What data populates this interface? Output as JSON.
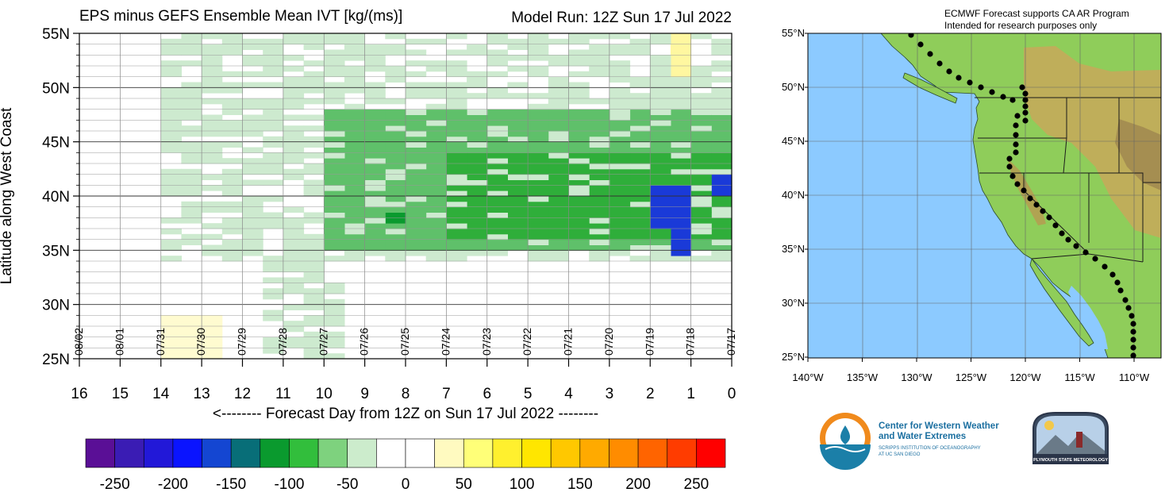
{
  "header": {
    "title": "EPS minus GEFS Ensemble Mean IVT [kg/(ms)]",
    "model_run": "Model Run: 12Z Sun 17 Jul 2022"
  },
  "chart_data": {
    "type": "heatmap",
    "title": "EPS minus GEFS Ensemble Mean IVT [kg/(ms)]",
    "xlabel": "<-------- Forecast Day from 12Z on Sun 17 Jul 2022 --------",
    "ylabel": "Latitude along West Coast",
    "x_range": [
      16,
      0
    ],
    "y_range": [
      25,
      55
    ],
    "x_ticks": [
      "16",
      "15",
      "14",
      "13",
      "12",
      "11",
      "10",
      "9",
      "8",
      "7",
      "6",
      "5",
      "4",
      "3",
      "2",
      "1",
      "0"
    ],
    "y_ticks": [
      "55N",
      "50N",
      "45N",
      "40N",
      "35N",
      "30N",
      "25N"
    ],
    "date_labels": [
      "08/02",
      "08/01",
      "07/31",
      "07/30",
      "07/29",
      "07/28",
      "07/27",
      "07/26",
      "07/25",
      "07/24",
      "07/23",
      "07/22",
      "07/21",
      "07/20",
      "07/19",
      "07/18",
      "07/17"
    ],
    "colorbar": {
      "labels": [
        "-250",
        "-200",
        "-150",
        "-100",
        "-50",
        "0",
        "50",
        "100",
        "150",
        "200",
        "250"
      ],
      "colors": [
        "#5a0f96",
        "#3a1cb4",
        "#2218d8",
        "#0a14ff",
        "#1446d2",
        "#086e78",
        "#0a9a2e",
        "#32be3c",
        "#7ed27e",
        "#cceccc",
        "#ffffff",
        "#ffffff",
        "#fffac0",
        "#ffff78",
        "#fff02e",
        "#ffe600",
        "#ffc800",
        "#ffaa00",
        "#ff8c00",
        "#ff6400",
        "#ff3c00",
        "#ff0000"
      ]
    },
    "regions": [
      {
        "lat": [
          34,
          55
        ],
        "day": [
          0,
          14
        ],
        "value": -30
      },
      {
        "lat": [
          35,
          48
        ],
        "day": [
          0,
          10
        ],
        "value": -60
      },
      {
        "lat": [
          36,
          44
        ],
        "day": [
          0,
          7
        ],
        "value": -95
      },
      {
        "lat": [
          37,
          41
        ],
        "day": [
          1,
          2.2
        ],
        "value": -190
      },
      {
        "lat": [
          34.5,
          37
        ],
        "day": [
          1.2,
          1.7
        ],
        "value": -190
      },
      {
        "lat": [
          40,
          42
        ],
        "day": [
          0.2,
          0.6
        ],
        "value": -190
      },
      {
        "lat": [
          37.5,
          38.5
        ],
        "day": [
          8.2,
          8.6
        ],
        "value": -135
      },
      {
        "lat": [
          25,
          29
        ],
        "day": [
          12.5,
          14
        ],
        "value": 30
      },
      {
        "lat": [
          51,
          55
        ],
        "day": [
          0.9,
          1.3
        ],
        "value": 40
      },
      {
        "lat": [
          25,
          35
        ],
        "day": [
          9.5,
          11.5
        ],
        "value": -30
      }
    ]
  },
  "map": {
    "caption_line1": "ECMWF Forecast supports CA AR Program",
    "caption_line2": "Intended for research purposes only",
    "lat_labels": [
      "55°N",
      "50°N",
      "45°N",
      "40°N",
      "35°N",
      "30°N",
      "25°N"
    ],
    "lon_labels": [
      "140°W",
      "135°W",
      "130°W",
      "125°W",
      "120°W",
      "115°W",
      "110°W"
    ],
    "colors": {
      "ocean": "#8ccaff",
      "land_low": "#88cc55",
      "land_high": "#c8a85a",
      "mountain": "#a08850"
    }
  },
  "logos": {
    "cw3e_line1": "Center for Western Weather",
    "cw3e_line2": "and Water Extremes",
    "cw3e_line3": "SCRIPPS INSTITUTION OF OCEANOGRAPHY",
    "cw3e_line4": "AT UC SAN DIEGO",
    "plymouth_text": "PLYMOUTH STATE METEOROLOGY"
  }
}
